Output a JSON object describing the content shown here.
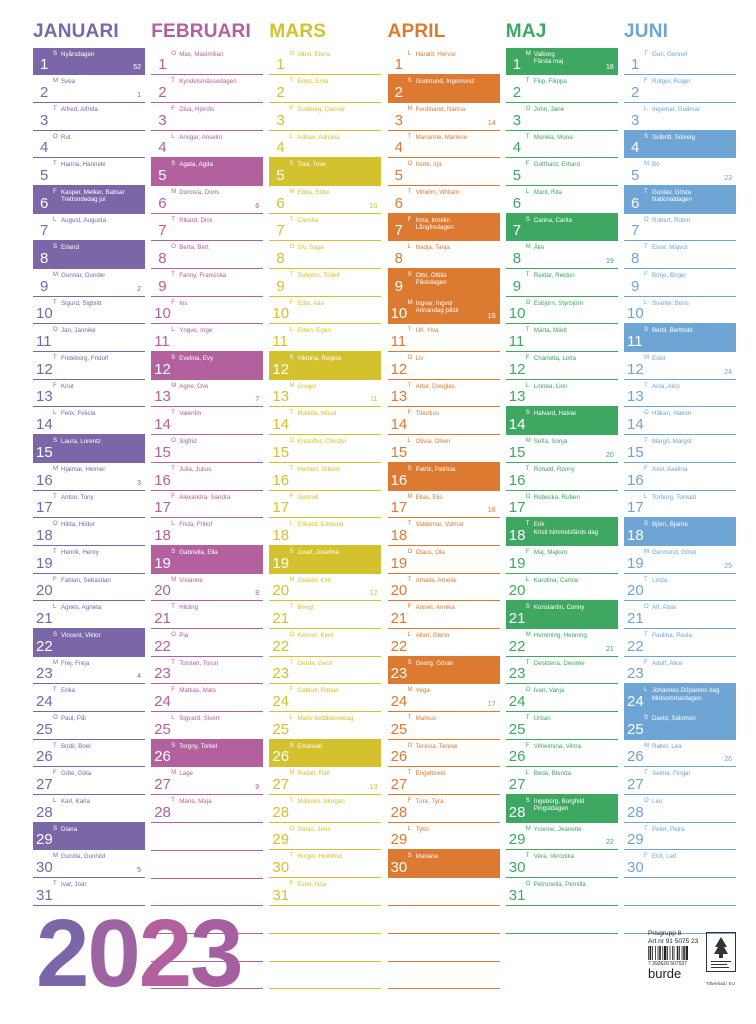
{
  "months": [
    {
      "name": "JANUARI",
      "color": "#7b67a8",
      "days": [
        {
          "d": "1",
          "l": "S",
          "n": "Nyårsdagen",
          "w": "52",
          "h": true
        },
        {
          "d": "2",
          "l": "M",
          "n": "Svea",
          "w": "1"
        },
        {
          "d": "3",
          "l": "T",
          "n": "Alfred, Alfrida"
        },
        {
          "d": "4",
          "l": "O",
          "n": "Rut"
        },
        {
          "d": "5",
          "l": "T",
          "n": "Hanna, Hannele"
        },
        {
          "d": "6",
          "l": "F",
          "n": "Kasper, Melker, Baltsar\nTrettondedag jul",
          "h": true
        },
        {
          "d": "7",
          "l": "L",
          "n": "August, Augusta"
        },
        {
          "d": "8",
          "l": "S",
          "n": "Erland",
          "h": true
        },
        {
          "d": "9",
          "l": "M",
          "n": "Gunnar, Gunder",
          "w": "2"
        },
        {
          "d": "10",
          "l": "T",
          "n": "Sigurd, Sigbritt"
        },
        {
          "d": "11",
          "l": "O",
          "n": "Jan, Jannike"
        },
        {
          "d": "12",
          "l": "T",
          "n": "Frideborg, Fridolf"
        },
        {
          "d": "13",
          "l": "F",
          "n": "Knut"
        },
        {
          "d": "14",
          "l": "L",
          "n": "Felix, Felicia"
        },
        {
          "d": "15",
          "l": "S",
          "n": "Laura, Lorentz",
          "h": true
        },
        {
          "d": "16",
          "l": "M",
          "n": "Hjalmar, Helmer",
          "w": "3"
        },
        {
          "d": "17",
          "l": "T",
          "n": "Anton, Tony"
        },
        {
          "d": "18",
          "l": "O",
          "n": "Hilda, Hildur"
        },
        {
          "d": "19",
          "l": "T",
          "n": "Henrik, Henry"
        },
        {
          "d": "20",
          "l": "F",
          "n": "Fabian, Sebastian"
        },
        {
          "d": "21",
          "l": "L",
          "n": "Agnes, Agneta"
        },
        {
          "d": "22",
          "l": "S",
          "n": "Vincent, Viktor",
          "h": true
        },
        {
          "d": "23",
          "l": "M",
          "n": "Frej, Freja",
          "w": "4"
        },
        {
          "d": "24",
          "l": "T",
          "n": "Erika"
        },
        {
          "d": "25",
          "l": "O",
          "n": "Paul, Pål"
        },
        {
          "d": "26",
          "l": "T",
          "n": "Bodil, Boel"
        },
        {
          "d": "27",
          "l": "F",
          "n": "Göte, Göta"
        },
        {
          "d": "28",
          "l": "L",
          "n": "Karl, Karla"
        },
        {
          "d": "29",
          "l": "S",
          "n": "Diana",
          "h": true
        },
        {
          "d": "30",
          "l": "M",
          "n": "Gunilla, Gunhild",
          "w": "5"
        },
        {
          "d": "31",
          "l": "T",
          "n": "Ivar, Joar"
        }
      ]
    },
    {
      "name": "FEBRUARI",
      "color": "#b2609e",
      "days": [
        {
          "d": "1",
          "l": "O",
          "n": "Max, Maximilian"
        },
        {
          "d": "2",
          "l": "T",
          "n": "Kyndelsmässodagen"
        },
        {
          "d": "3",
          "l": "F",
          "n": "Disa, Hjördis"
        },
        {
          "d": "4",
          "l": "L",
          "n": "Ansgar, Anselm"
        },
        {
          "d": "5",
          "l": "S",
          "n": "Agata, Agda",
          "h": true
        },
        {
          "d": "6",
          "l": "M",
          "n": "Dorotea, Doris",
          "w": "6"
        },
        {
          "d": "7",
          "l": "T",
          "n": "Rikard, Dick"
        },
        {
          "d": "8",
          "l": "O",
          "n": "Berta, Bert"
        },
        {
          "d": "9",
          "l": "T",
          "n": "Fanny, Franciska"
        },
        {
          "d": "10",
          "l": "F",
          "n": "Iris"
        },
        {
          "d": "11",
          "l": "L",
          "n": "Yngve, Inge"
        },
        {
          "d": "12",
          "l": "S",
          "n": "Evelina, Evy",
          "h": true
        },
        {
          "d": "13",
          "l": "M",
          "n": "Agne, Ove",
          "w": "7"
        },
        {
          "d": "14",
          "l": "T",
          "n": "Valentin"
        },
        {
          "d": "15",
          "l": "O",
          "n": "Sigfrid"
        },
        {
          "d": "16",
          "l": "T",
          "n": "Julia, Julius"
        },
        {
          "d": "17",
          "l": "F",
          "n": "Alexandra, Sandra"
        },
        {
          "d": "18",
          "l": "L",
          "n": "Frida, Fritiof"
        },
        {
          "d": "19",
          "l": "S",
          "n": "Gabriella, Ella",
          "h": true
        },
        {
          "d": "20",
          "l": "M",
          "n": "Vivianne",
          "w": "8"
        },
        {
          "d": "21",
          "l": "T",
          "n": "Hilding"
        },
        {
          "d": "22",
          "l": "O",
          "n": "Pia"
        },
        {
          "d": "23",
          "l": "T",
          "n": "Torsten, Torun"
        },
        {
          "d": "24",
          "l": "F",
          "n": "Mattias, Mats"
        },
        {
          "d": "25",
          "l": "L",
          "n": "Sigvard, Sivert"
        },
        {
          "d": "26",
          "l": "S",
          "n": "Torgny, Torkel",
          "h": true
        },
        {
          "d": "27",
          "l": "M",
          "n": "Lage",
          "w": "9"
        },
        {
          "d": "28",
          "l": "T",
          "n": "Maria, Maja"
        }
      ]
    },
    {
      "name": "MARS",
      "color": "#d4c12e",
      "days": [
        {
          "d": "1",
          "l": "O",
          "n": "Albin, Elvira"
        },
        {
          "d": "2",
          "l": "T",
          "n": "Ernst, Erna"
        },
        {
          "d": "3",
          "l": "F",
          "n": "Gunborg, Gunvor"
        },
        {
          "d": "4",
          "l": "L",
          "n": "Adrian, Adriana"
        },
        {
          "d": "5",
          "l": "S",
          "n": "Tora, Tove",
          "h": true
        },
        {
          "d": "6",
          "l": "M",
          "n": "Ebba, Ebbe",
          "w": "10"
        },
        {
          "d": "7",
          "l": "T",
          "n": "Camilla"
        },
        {
          "d": "8",
          "l": "O",
          "n": "Siv, Saga"
        },
        {
          "d": "9",
          "l": "T",
          "n": "Torbjörn, Torleif"
        },
        {
          "d": "10",
          "l": "F",
          "n": "Edla, Ada"
        },
        {
          "d": "11",
          "l": "L",
          "n": "Edvin, Egon"
        },
        {
          "d": "12",
          "l": "S",
          "n": "Viktoria, Regina",
          "h": true
        },
        {
          "d": "13",
          "l": "M",
          "n": "Greger",
          "w": "11"
        },
        {
          "d": "14",
          "l": "T",
          "n": "Matilda, Maud"
        },
        {
          "d": "15",
          "l": "O",
          "n": "Kristoffer, Christel"
        },
        {
          "d": "16",
          "l": "T",
          "n": "Herbert, Gilbert"
        },
        {
          "d": "17",
          "l": "F",
          "n": "Gertrud"
        },
        {
          "d": "18",
          "l": "L",
          "n": "Edvard, Edmund"
        },
        {
          "d": "19",
          "l": "S",
          "n": "Josef, Josefina",
          "h": true
        },
        {
          "d": "20",
          "l": "M",
          "n": "Joakim, Kim",
          "w": "12"
        },
        {
          "d": "21",
          "l": "T",
          "n": "Bengt"
        },
        {
          "d": "22",
          "l": "O",
          "n": "Kennet, Kent"
        },
        {
          "d": "23",
          "l": "T",
          "n": "Gerda, Gerd"
        },
        {
          "d": "24",
          "l": "F",
          "n": "Gabriel, Rafael"
        },
        {
          "d": "25",
          "l": "L",
          "n": "Marie bebådelsedag"
        },
        {
          "d": "26",
          "l": "S",
          "n": "Emanuel",
          "h": true
        },
        {
          "d": "27",
          "l": "M",
          "n": "Rudolf, Ralf",
          "w": "13"
        },
        {
          "d": "28",
          "l": "T",
          "n": "Malkolm, Morgan"
        },
        {
          "d": "29",
          "l": "O",
          "n": "Jonas, Jens"
        },
        {
          "d": "30",
          "l": "T",
          "n": "Holger, Holmfrid"
        },
        {
          "d": "31",
          "l": "F",
          "n": "Ester, Noa"
        }
      ]
    },
    {
      "name": "APRIL",
      "color": "#dd7a31",
      "days": [
        {
          "d": "1",
          "l": "L",
          "n": "Harald, Hervor"
        },
        {
          "d": "2",
          "l": "S",
          "n": "Gudmund, Ingemund",
          "h": true
        },
        {
          "d": "3",
          "l": "M",
          "n": "Ferdinand, Nanna",
          "w": "14"
        },
        {
          "d": "4",
          "l": "T",
          "n": "Marianne, Marlene"
        },
        {
          "d": "5",
          "l": "O",
          "n": "Irene, Irja"
        },
        {
          "d": "6",
          "l": "T",
          "n": "Vilhelm, William"
        },
        {
          "d": "7",
          "l": "F",
          "n": "Irma, Irmelin\nLångfredagen",
          "h": true
        },
        {
          "d": "8",
          "l": "L",
          "n": "Nadja, Tanja"
        },
        {
          "d": "9",
          "l": "S",
          "n": "Otto, Ottilia\nPåskdagen",
          "h": true
        },
        {
          "d": "10",
          "l": "M",
          "n": "Ingvar, Ingvor\nAnnandag påsk",
          "w": "15",
          "h": true
        },
        {
          "d": "11",
          "l": "T",
          "n": "Ulf, Ylva"
        },
        {
          "d": "12",
          "l": "O",
          "n": "Liv"
        },
        {
          "d": "13",
          "l": "T",
          "n": "Artur, Douglas"
        },
        {
          "d": "14",
          "l": "F",
          "n": "Tiburtius"
        },
        {
          "d": "15",
          "l": "L",
          "n": "Olivia, Oliver"
        },
        {
          "d": "16",
          "l": "S",
          "n": "Patrik, Patricia",
          "h": true
        },
        {
          "d": "17",
          "l": "M",
          "n": "Elias, Elis",
          "w": "16"
        },
        {
          "d": "18",
          "l": "T",
          "n": "Valdemar, Volmar"
        },
        {
          "d": "19",
          "l": "O",
          "n": "Olaus, Ola"
        },
        {
          "d": "20",
          "l": "T",
          "n": "Amalia, Amelie"
        },
        {
          "d": "21",
          "l": "F",
          "n": "Anneli, Annika"
        },
        {
          "d": "22",
          "l": "L",
          "n": "Allan, Glenn"
        },
        {
          "d": "23",
          "l": "S",
          "n": "Georg, Göran",
          "h": true
        },
        {
          "d": "24",
          "l": "M",
          "n": "Vega",
          "w": "17"
        },
        {
          "d": "25",
          "l": "T",
          "n": "Markus"
        },
        {
          "d": "26",
          "l": "O",
          "n": "Teresia, Terese"
        },
        {
          "d": "27",
          "l": "T",
          "n": "Engelbrekt"
        },
        {
          "d": "28",
          "l": "F",
          "n": "Ture, Tyra"
        },
        {
          "d": "29",
          "l": "L",
          "n": "Tyko"
        },
        {
          "d": "30",
          "l": "S",
          "n": "Mariana",
          "h": true
        }
      ]
    },
    {
      "name": "MAJ",
      "color": "#3ea862",
      "days": [
        {
          "d": "1",
          "l": "M",
          "n": "Valborg\nFörsta maj",
          "w": "18",
          "h": true
        },
        {
          "d": "2",
          "l": "T",
          "n": "Filip, Filippa"
        },
        {
          "d": "3",
          "l": "O",
          "n": "John, Jane"
        },
        {
          "d": "4",
          "l": "T",
          "n": "Monika, Mona"
        },
        {
          "d": "5",
          "l": "F",
          "n": "Gotthard, Erhard"
        },
        {
          "d": "6",
          "l": "L",
          "n": "Marit, Rita"
        },
        {
          "d": "7",
          "l": "S",
          "n": "Carina, Carita",
          "h": true
        },
        {
          "d": "8",
          "l": "M",
          "n": "Åke",
          "w": "19"
        },
        {
          "d": "9",
          "l": "T",
          "n": "Reidar, Reidun"
        },
        {
          "d": "10",
          "l": "O",
          "n": "Esbjörn, Styrbjörn"
        },
        {
          "d": "11",
          "l": "T",
          "n": "Märta, Märit"
        },
        {
          "d": "12",
          "l": "F",
          "n": "Charlotta, Lotta"
        },
        {
          "d": "13",
          "l": "L",
          "n": "Linnea, Linn"
        },
        {
          "d": "14",
          "l": "S",
          "n": "Halvard, Halvar",
          "h": true
        },
        {
          "d": "15",
          "l": "M",
          "n": "Sofia, Sonja",
          "w": "20"
        },
        {
          "d": "16",
          "l": "T",
          "n": "Ronald, Ronny"
        },
        {
          "d": "17",
          "l": "O",
          "n": "Rebecka, Ruben"
        },
        {
          "d": "18",
          "l": "T",
          "n": "Erik\nKristi himmelsfärds dag",
          "h": true
        },
        {
          "d": "19",
          "l": "F",
          "n": "Maj, Majken"
        },
        {
          "d": "20",
          "l": "L",
          "n": "Karolina, Carola"
        },
        {
          "d": "21",
          "l": "S",
          "n": "Konstantin, Conny",
          "h": true
        },
        {
          "d": "22",
          "l": "M",
          "n": "Hemming, Henning",
          "w": "21"
        },
        {
          "d": "23",
          "l": "T",
          "n": "Desideria, Desirée"
        },
        {
          "d": "24",
          "l": "O",
          "n": "Ivan, Vanja"
        },
        {
          "d": "25",
          "l": "T",
          "n": "Urban"
        },
        {
          "d": "26",
          "l": "F",
          "n": "Vilhelmina, Vilma"
        },
        {
          "d": "27",
          "l": "L",
          "n": "Beda, Blenda"
        },
        {
          "d": "28",
          "l": "S",
          "n": "Ingeborg, Borghild\nPingstdagen",
          "h": true
        },
        {
          "d": "29",
          "l": "M",
          "n": "Yvonne, Jeanette",
          "w": "22"
        },
        {
          "d": "30",
          "l": "T",
          "n": "Vera, Veronika"
        },
        {
          "d": "31",
          "l": "O",
          "n": "Petronella, Pernilla"
        }
      ]
    },
    {
      "name": "JUNI",
      "color": "#6fa5d4",
      "days": [
        {
          "d": "1",
          "l": "T",
          "n": "Gun, Gunnel"
        },
        {
          "d": "2",
          "l": "F",
          "n": "Rutger, Roger"
        },
        {
          "d": "3",
          "l": "L",
          "n": "Ingemar, Gudmar"
        },
        {
          "d": "4",
          "l": "S",
          "n": "Solbritt, Solveig",
          "h": true
        },
        {
          "d": "5",
          "l": "M",
          "n": "Bo",
          "w": "23"
        },
        {
          "d": "6",
          "l": "T",
          "n": "Gustav, Gösta\nNationaldagen",
          "h": true
        },
        {
          "d": "7",
          "l": "O",
          "n": "Robert, Robin"
        },
        {
          "d": "8",
          "l": "T",
          "n": "Eivor, Majvor"
        },
        {
          "d": "9",
          "l": "F",
          "n": "Börje, Birger"
        },
        {
          "d": "10",
          "l": "L",
          "n": "Svante, Boris"
        },
        {
          "d": "11",
          "l": "S",
          "n": "Bertil, Berthold",
          "h": true
        },
        {
          "d": "12",
          "l": "M",
          "n": "Eskil",
          "w": "24"
        },
        {
          "d": "13",
          "l": "T",
          "n": "Aina, Aino"
        },
        {
          "d": "14",
          "l": "O",
          "n": "Håkan, Hakon"
        },
        {
          "d": "15",
          "l": "T",
          "n": "Margit, Margot"
        },
        {
          "d": "16",
          "l": "F",
          "n": "Axel, Axelina"
        },
        {
          "d": "17",
          "l": "L",
          "n": "Torborg, Torvald"
        },
        {
          "d": "18",
          "l": "S",
          "n": "Björn, Bjarne",
          "h": true
        },
        {
          "d": "19",
          "l": "M",
          "n": "Germund, Görel",
          "w": "25"
        },
        {
          "d": "20",
          "l": "T",
          "n": "Linda"
        },
        {
          "d": "21",
          "l": "O",
          "n": "Alf, Alvar"
        },
        {
          "d": "22",
          "l": "T",
          "n": "Paulina, Paula"
        },
        {
          "d": "23",
          "l": "F",
          "n": "Adolf, Alice"
        },
        {
          "d": "24",
          "l": "L",
          "n": "Johannes Döparens dag\nMidsommardagen",
          "h": true
        },
        {
          "d": "25",
          "l": "S",
          "n": "David, Salomon",
          "h": true
        },
        {
          "d": "26",
          "l": "M",
          "n": "Rakel, Lea",
          "w": "26"
        },
        {
          "d": "27",
          "l": "T",
          "n": "Selma, Fingal"
        },
        {
          "d": "28",
          "l": "O",
          "n": "Leo"
        },
        {
          "d": "29",
          "l": "T",
          "n": "Peter, Petra"
        },
        {
          "d": "30",
          "l": "F",
          "n": "Elof, Leif"
        }
      ]
    }
  ],
  "year": {
    "digits": [
      "2",
      "0",
      "2",
      "3"
    ],
    "colors": [
      "#7b67a8",
      "#9c64a3",
      "#b2609e",
      "#a55fa0"
    ]
  },
  "footer": {
    "prisgrupp": "Prisgrupp 8",
    "artnr": "Art nr 91 5075 23",
    "barcode_number": "7 392620 507537",
    "brand": "burde",
    "tillverkad": "Tillverkad i EU"
  }
}
